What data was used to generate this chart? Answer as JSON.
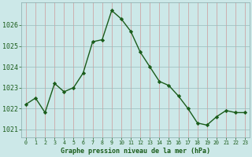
{
  "x": [
    0,
    1,
    2,
    3,
    4,
    5,
    6,
    7,
    8,
    9,
    10,
    11,
    12,
    13,
    14,
    15,
    16,
    17,
    18,
    19,
    20,
    21,
    22,
    23
  ],
  "y": [
    1022.2,
    1022.5,
    1021.8,
    1023.2,
    1022.8,
    1023.0,
    1023.7,
    1025.2,
    1025.3,
    1026.7,
    1026.3,
    1025.7,
    1024.7,
    1024.0,
    1023.3,
    1023.1,
    1022.6,
    1022.0,
    1021.3,
    1021.2,
    1021.6,
    1021.9,
    1021.8,
    1021.8
  ],
  "line_color": "#1a5c1a",
  "marker": "D",
  "marker_size": 2.2,
  "bg_color": "#cce8e8",
  "grid_major_color": "#aacccc",
  "grid_minor_color": "#ddbbbb",
  "label_color": "#1a5c1a",
  "xlabel": "Graphe pression niveau de la mer (hPa)",
  "xtick_labels": [
    "0",
    "1",
    "2",
    "3",
    "4",
    "5",
    "6",
    "7",
    "8",
    "9",
    "10",
    "11",
    "12",
    "13",
    "14",
    "15",
    "16",
    "17",
    "18",
    "19",
    "20",
    "21",
    "22",
    "23"
  ],
  "ytick_vals": [
    1021,
    1022,
    1023,
    1024,
    1025,
    1026
  ],
  "ytick_labels": [
    "1021",
    "1022",
    "1023",
    "1024",
    "1025",
    "1026"
  ],
  "ylim": [
    1020.6,
    1027.1
  ],
  "xlim": [
    -0.5,
    23.5
  ]
}
